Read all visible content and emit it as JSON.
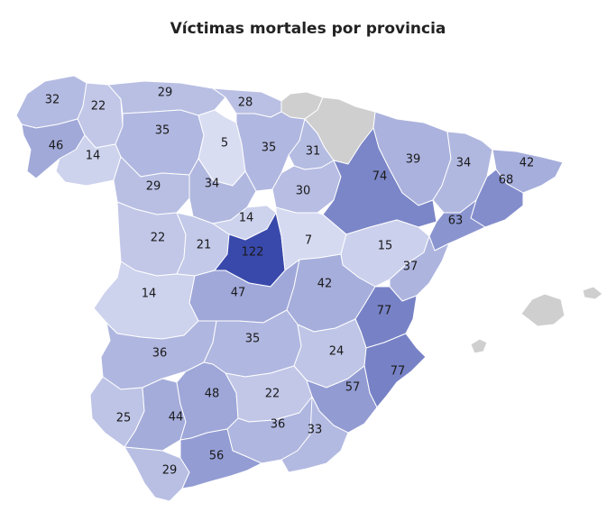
{
  "title": "Víctimas mortales por provincia",
  "colors": {
    "low": "#d9ddf2",
    "high": "#3949ab",
    "no_data": "#cfcfcf",
    "border": "#ffffff"
  },
  "scale": {
    "min": 5,
    "max": 122
  },
  "provinces": [
    {
      "id": "a-coruna",
      "value": 32
    },
    {
      "id": "lugo",
      "value": 22
    },
    {
      "id": "asturias",
      "value": 29
    },
    {
      "id": "cantabria",
      "value": 28
    },
    {
      "id": "pontevedra",
      "value": 46
    },
    {
      "id": "ourense",
      "value": 14
    },
    {
      "id": "leon",
      "value": 35
    },
    {
      "id": "palencia",
      "value": 5
    },
    {
      "id": "burgos",
      "value": 35
    },
    {
      "id": "la-rioja",
      "value": 31
    },
    {
      "id": "zamora",
      "value": 29
    },
    {
      "id": "valladolid",
      "value": 34
    },
    {
      "id": "soria",
      "value": 30
    },
    {
      "id": "huesca",
      "value": 39
    },
    {
      "id": "lleida",
      "value": 34
    },
    {
      "id": "girona",
      "value": 42
    },
    {
      "id": "zaragoza",
      "value": 74
    },
    {
      "id": "barcelona",
      "value": 68
    },
    {
      "id": "tarragona",
      "value": 63
    },
    {
      "id": "salamanca",
      "value": 22
    },
    {
      "id": "avila",
      "value": 21
    },
    {
      "id": "segovia",
      "value": 14
    },
    {
      "id": "madrid",
      "value": 122
    },
    {
      "id": "guadalajara",
      "value": 7
    },
    {
      "id": "teruel",
      "value": 15
    },
    {
      "id": "castellon",
      "value": 37
    },
    {
      "id": "caceres",
      "value": 14
    },
    {
      "id": "toledo",
      "value": 47
    },
    {
      "id": "cuenca",
      "value": 42
    },
    {
      "id": "valencia",
      "value": 77
    },
    {
      "id": "badajoz",
      "value": 36
    },
    {
      "id": "ciudad-real",
      "value": 35
    },
    {
      "id": "albacete",
      "value": 24
    },
    {
      "id": "alicante",
      "value": 77
    },
    {
      "id": "huelva",
      "value": 25
    },
    {
      "id": "sevilla",
      "value": 44
    },
    {
      "id": "cordoba",
      "value": 48
    },
    {
      "id": "jaen",
      "value": 22
    },
    {
      "id": "murcia",
      "value": 57
    },
    {
      "id": "granada",
      "value": 36
    },
    {
      "id": "almeria",
      "value": 33
    },
    {
      "id": "cadiz",
      "value": 29
    },
    {
      "id": "malaga",
      "value": 56
    }
  ],
  "no_data_regions": [
    "pais-vasco",
    "navarra",
    "baleares"
  ]
}
